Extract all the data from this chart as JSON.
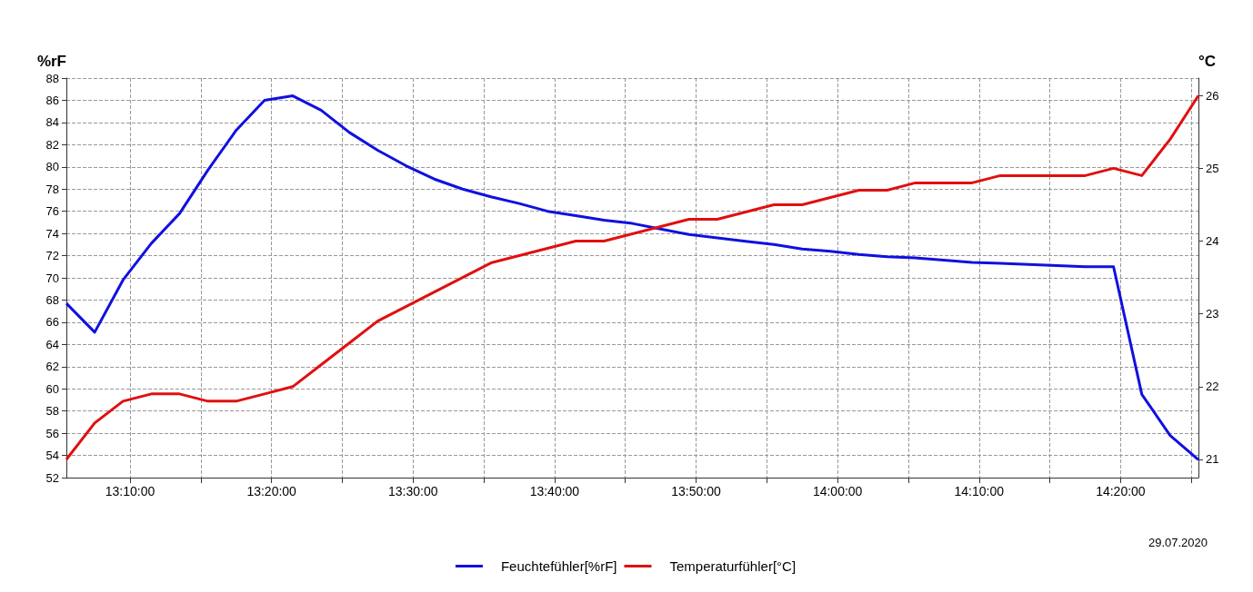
{
  "chart_data": {
    "type": "line",
    "ylabel": "%rF",
    "y2label": "°C",
    "x": [
      13.09167,
      13.125,
      13.15833,
      13.19167,
      13.225,
      13.25833,
      13.29167,
      13.325,
      13.35833,
      13.39167,
      13.425,
      13.45833,
      13.49167,
      13.525,
      13.55833,
      13.59167,
      13.625,
      13.65833,
      13.69167,
      13.725,
      13.75833,
      13.79167,
      13.825,
      13.85833,
      13.89167,
      13.925,
      13.95833,
      13.99167,
      14.025,
      14.05833,
      14.09167,
      14.125,
      14.15833,
      14.19167,
      14.225,
      14.25833,
      14.29167,
      14.325,
      14.35833,
      14.39167,
      14.425
    ],
    "series": [
      {
        "name": "Feuchtefühler[%rF]",
        "color": "#1010e0",
        "values": [
          67.7,
          65.1,
          69.8,
          73.1,
          75.8,
          79.7,
          83.3,
          86.0,
          86.4,
          85.1,
          83.1,
          81.5,
          80.1,
          78.9,
          78.0,
          77.3,
          76.7,
          76.0,
          75.6,
          75.2,
          74.9,
          74.4,
          73.9,
          73.6,
          73.3,
          73.0,
          72.6,
          72.4,
          72.1,
          71.9,
          71.8,
          71.6,
          71.4,
          71.3,
          71.2,
          71.1,
          71.0,
          71.0,
          59.5,
          55.8,
          53.6
        ]
      },
      {
        "name": "Temperaturfühler[°C]",
        "color": "#e01010",
        "axis": "y2",
        "values": [
          21.0,
          21.5,
          21.8,
          21.9,
          21.9,
          21.8,
          21.8,
          21.9,
          22.0,
          22.3,
          22.6,
          22.9,
          23.1,
          23.3,
          23.5,
          23.7,
          23.8,
          23.9,
          24.0,
          24.0,
          24.1,
          24.2,
          24.3,
          24.3,
          24.4,
          24.5,
          24.5,
          24.6,
          24.7,
          24.7,
          24.8,
          24.8,
          24.8,
          24.9,
          24.9,
          24.9,
          24.9,
          25.0,
          24.9,
          25.4,
          26.0
        ]
      }
    ],
    "xlim": [
      13.09167,
      14.425
    ],
    "xticks": [
      {
        "value": 13.16667,
        "label": "13:10:00"
      },
      {
        "value": 13.25,
        "label": null
      },
      {
        "value": 13.33333,
        "label": "13:20:00"
      },
      {
        "value": 13.41667,
        "label": null
      },
      {
        "value": 13.5,
        "label": "13:30:00"
      },
      {
        "value": 13.58333,
        "label": null
      },
      {
        "value": 13.66667,
        "label": "13:40:00"
      },
      {
        "value": 13.75,
        "label": null
      },
      {
        "value": 13.83333,
        "label": "13:50:00"
      },
      {
        "value": 13.91667,
        "label": null
      },
      {
        "value": 14,
        "label": "14:00:00"
      },
      {
        "value": 14.08333,
        "label": null
      },
      {
        "value": 14.16667,
        "label": "14:10:00"
      },
      {
        "value": 14.25,
        "label": null
      },
      {
        "value": 14.33333,
        "label": "14:20:00"
      },
      {
        "value": 14.41667,
        "label": null
      }
    ],
    "ylim": [
      52,
      88
    ],
    "yticks": [
      52,
      54,
      56,
      58,
      60,
      62,
      64,
      66,
      68,
      70,
      72,
      74,
      76,
      78,
      80,
      82,
      84,
      86,
      88
    ],
    "y2lim": [
      20.75,
      26.24
    ],
    "y2ticks": [
      21,
      22,
      23,
      24,
      25,
      26
    ],
    "annotations": [
      "29.07.2020"
    ],
    "grid": true,
    "legend": "bottom",
    "marker": "none",
    "line_style": "solid"
  }
}
